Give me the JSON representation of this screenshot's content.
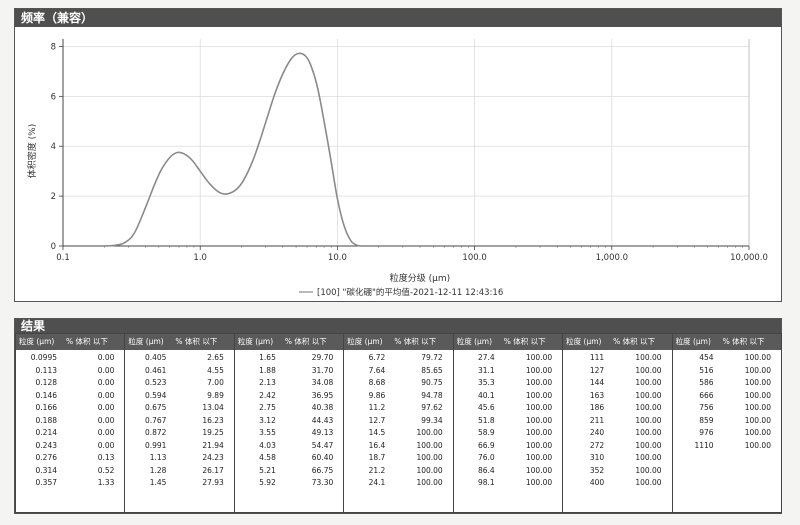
{
  "freq_panel": {
    "title": "频率（兼容）"
  },
  "chart_data": {
    "type": "line",
    "xscale": "log",
    "xlim": [
      0.1,
      10000
    ],
    "ylim": [
      0,
      8.3
    ],
    "xticks": [
      "0.1",
      "1.0",
      "10.0",
      "100.0",
      "1,000.0",
      "10,000.0"
    ],
    "yticks": [
      "0",
      "2",
      "4",
      "6",
      "8"
    ],
    "xlabel": "粒度分级 (μm)",
    "ylabel": "体积密度 (%)",
    "grid": true,
    "legend_position": "bottom-center",
    "series": [
      {
        "name": "[100] \"碳化硼\"的平均值-2021-12-11 12:43:16",
        "color": "#8a8a8a",
        "x": [
          0.2,
          0.24,
          0.28,
          0.33,
          0.4,
          0.46,
          0.52,
          0.6,
          0.68,
          0.76,
          0.87,
          1.0,
          1.15,
          1.3,
          1.45,
          1.65,
          1.9,
          2.15,
          2.45,
          2.75,
          3.1,
          3.5,
          4.0,
          4.6,
          5.2,
          5.9,
          6.5,
          7.2,
          8.0,
          9.0,
          10.0,
          11.2,
          12.5,
          13.5,
          14.5,
          15.5
        ],
        "y": [
          0.0,
          0.03,
          0.13,
          0.5,
          1.55,
          2.4,
          3.05,
          3.55,
          3.75,
          3.7,
          3.45,
          3.0,
          2.55,
          2.25,
          2.1,
          2.12,
          2.35,
          2.8,
          3.5,
          4.3,
          5.2,
          6.1,
          6.9,
          7.5,
          7.72,
          7.6,
          7.15,
          6.3,
          5.0,
          3.4,
          1.9,
          0.8,
          0.22,
          0.06,
          0.01,
          0.0
        ]
      }
    ]
  },
  "results": {
    "title": "结果",
    "col_header_size": "粒度 (μm)",
    "col_header_pct": "% 体积 以下",
    "columns": [
      [
        [
          "0.0995",
          "0.00"
        ],
        [
          "0.113",
          "0.00"
        ],
        [
          "0.128",
          "0.00"
        ],
        [
          "0.146",
          "0.00"
        ],
        [
          "0.166",
          "0.00"
        ],
        [
          "0.188",
          "0.00"
        ],
        [
          "0.214",
          "0.00"
        ],
        [
          "0.243",
          "0.00"
        ],
        [
          "0.276",
          "0.13"
        ],
        [
          "0.314",
          "0.52"
        ],
        [
          "0.357",
          "1.33"
        ]
      ],
      [
        [
          "0.405",
          "2.65"
        ],
        [
          "0.461",
          "4.55"
        ],
        [
          "0.523",
          "7.00"
        ],
        [
          "0.594",
          "9.89"
        ],
        [
          "0.675",
          "13.04"
        ],
        [
          "0.767",
          "16.23"
        ],
        [
          "0.872",
          "19.25"
        ],
        [
          "0.991",
          "21.94"
        ],
        [
          "1.13",
          "24.23"
        ],
        [
          "1.28",
          "26.17"
        ],
        [
          "1.45",
          "27.93"
        ]
      ],
      [
        [
          "1.65",
          "29.70"
        ],
        [
          "1.88",
          "31.70"
        ],
        [
          "2.13",
          "34.08"
        ],
        [
          "2.42",
          "36.95"
        ],
        [
          "2.75",
          "40.38"
        ],
        [
          "3.12",
          "44.43"
        ],
        [
          "3.55",
          "49.13"
        ],
        [
          "4.03",
          "54.47"
        ],
        [
          "4.58",
          "60.40"
        ],
        [
          "5.21",
          "66.75"
        ],
        [
          "5.92",
          "73.30"
        ]
      ],
      [
        [
          "6.72",
          "79.72"
        ],
        [
          "7.64",
          "85.65"
        ],
        [
          "8.68",
          "90.75"
        ],
        [
          "9.86",
          "94.78"
        ],
        [
          "11.2",
          "97.62"
        ],
        [
          "12.7",
          "99.34"
        ],
        [
          "14.5",
          "100.00"
        ],
        [
          "16.4",
          "100.00"
        ],
        [
          "18.7",
          "100.00"
        ],
        [
          "21.2",
          "100.00"
        ],
        [
          "24.1",
          "100.00"
        ]
      ],
      [
        [
          "27.4",
          "100.00"
        ],
        [
          "31.1",
          "100.00"
        ],
        [
          "35.3",
          "100.00"
        ],
        [
          "40.1",
          "100.00"
        ],
        [
          "45.6",
          "100.00"
        ],
        [
          "51.8",
          "100.00"
        ],
        [
          "58.9",
          "100.00"
        ],
        [
          "66.9",
          "100.00"
        ],
        [
          "76.0",
          "100.00"
        ],
        [
          "86.4",
          "100.00"
        ],
        [
          "98.1",
          "100.00"
        ]
      ],
      [
        [
          "111",
          "100.00"
        ],
        [
          "127",
          "100.00"
        ],
        [
          "144",
          "100.00"
        ],
        [
          "163",
          "100.00"
        ],
        [
          "186",
          "100.00"
        ],
        [
          "211",
          "100.00"
        ],
        [
          "240",
          "100.00"
        ],
        [
          "272",
          "100.00"
        ],
        [
          "310",
          "100.00"
        ],
        [
          "352",
          "100.00"
        ],
        [
          "400",
          "100.00"
        ]
      ],
      [
        [
          "454",
          "100.00"
        ],
        [
          "516",
          "100.00"
        ],
        [
          "586",
          "100.00"
        ],
        [
          "666",
          "100.00"
        ],
        [
          "756",
          "100.00"
        ],
        [
          "859",
          "100.00"
        ],
        [
          "976",
          "100.00"
        ],
        [
          "1110",
          "100.00"
        ]
      ]
    ]
  }
}
